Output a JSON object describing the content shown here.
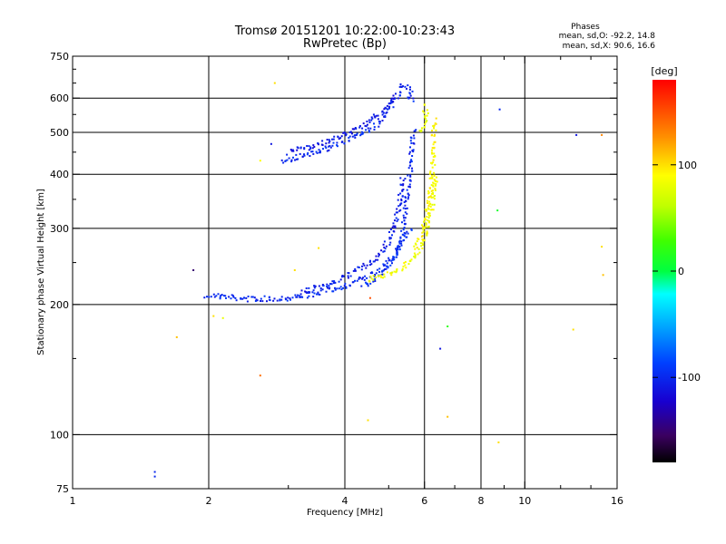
{
  "chart_data": {
    "type": "scatter",
    "title": "Tromsø 20151201 10:22:00-10:23:43",
    "subtitle": "RwPretec (Bp)",
    "xlabel": "Frequency [MHz]",
    "ylabel": "Stationary phase Virtual Height [km]",
    "x_scale": "log",
    "y_scale": "log",
    "xlim": [
      1,
      16
    ],
    "ylim": [
      75,
      750
    ],
    "x_ticks": [
      {
        "value": 1,
        "label": "1"
      },
      {
        "value": 2,
        "label": "2"
      },
      {
        "value": 4,
        "label": "4"
      },
      {
        "value": 6,
        "label": "6"
      },
      {
        "value": 8,
        "label": "8"
      },
      {
        "value": 10,
        "label": "10"
      },
      {
        "value": 16,
        "label": "16"
      }
    ],
    "y_ticks": [
      {
        "value": 75,
        "label": "75"
      },
      {
        "value": 100,
        "label": "100"
      },
      {
        "value": 200,
        "label": "200"
      },
      {
        "value": 300,
        "label": "300"
      },
      {
        "value": 400,
        "label": "400"
      },
      {
        "value": 500,
        "label": "500"
      },
      {
        "value": 600,
        "label": "600"
      },
      {
        "value": 750,
        "label": "750"
      }
    ],
    "grid": true,
    "phase_stats": {
      "heading": "Phases",
      "line_o": "mean, sd,O: -92.2, 14.8",
      "line_x": "mean, sd,X:  90.6, 16.6"
    },
    "colorbar": {
      "label": "[deg]",
      "range": [
        -180,
        180
      ],
      "ticks": [
        {
          "value": 100,
          "label": "100"
        },
        {
          "value": 0,
          "label": "0"
        },
        {
          "value": -100,
          "label": "-100"
        }
      ]
    },
    "traces": [
      {
        "phase": -100,
        "points": [
          [
            1.98,
            210
          ],
          [
            2.1,
            209
          ],
          [
            2.3,
            207
          ],
          [
            2.5,
            206
          ],
          [
            2.7,
            206
          ],
          [
            3.0,
            207
          ],
          [
            3.3,
            210
          ],
          [
            3.6,
            214
          ],
          [
            3.9,
            219
          ],
          [
            4.2,
            225
          ],
          [
            4.5,
            232
          ],
          [
            4.8,
            241
          ],
          [
            5.0,
            250
          ],
          [
            5.2,
            262
          ],
          [
            5.3,
            275
          ],
          [
            5.35,
            290
          ],
          [
            5.4,
            310
          ],
          [
            5.45,
            335
          ],
          [
            5.5,
            360
          ],
          [
            5.55,
            390
          ],
          [
            5.6,
            420
          ],
          [
            5.62,
            450
          ],
          [
            5.65,
            480
          ],
          [
            5.68,
            510
          ]
        ]
      },
      {
        "phase": -105,
        "points": [
          [
            3.2,
            213
          ],
          [
            3.5,
            219
          ],
          [
            3.8,
            226
          ],
          [
            4.1,
            234
          ],
          [
            4.4,
            244
          ],
          [
            4.7,
            256
          ],
          [
            4.9,
            270
          ],
          [
            5.05,
            286
          ],
          [
            5.15,
            305
          ],
          [
            5.25,
            330
          ],
          [
            5.32,
            360
          ],
          [
            5.38,
            395
          ]
        ]
      },
      {
        "phase": -95,
        "points": [
          [
            4.4,
            220
          ],
          [
            4.6,
            227
          ],
          [
            4.8,
            236
          ],
          [
            5.0,
            246
          ],
          [
            5.15,
            258
          ],
          [
            5.3,
            272
          ],
          [
            5.45,
            288
          ],
          [
            5.6,
            300
          ]
        ]
      },
      {
        "phase": -100,
        "points": [
          [
            2.9,
            430
          ],
          [
            3.2,
            440
          ],
          [
            3.5,
            452
          ],
          [
            3.8,
            466
          ],
          [
            4.1,
            482
          ],
          [
            4.4,
            500
          ],
          [
            4.7,
            520
          ],
          [
            4.9,
            545
          ],
          [
            5.05,
            572
          ],
          [
            5.2,
            600
          ],
          [
            5.3,
            630
          ],
          [
            5.4,
            650
          ]
        ]
      },
      {
        "phase": -110,
        "points": [
          [
            3.0,
            450
          ],
          [
            3.3,
            460
          ],
          [
            3.6,
            474
          ],
          [
            3.9,
            490
          ],
          [
            4.2,
            508
          ],
          [
            4.5,
            528
          ],
          [
            4.8,
            552
          ],
          [
            5.0,
            580
          ],
          [
            5.15,
            610
          ]
        ]
      },
      {
        "phase": -100,
        "points": [
          [
            5.45,
            640
          ],
          [
            5.6,
            630
          ],
          [
            5.55,
            600
          ],
          [
            5.7,
            590
          ]
        ]
      },
      {
        "phase": 85,
        "points": [
          [
            4.5,
            228
          ],
          [
            4.8,
            232
          ],
          [
            5.1,
            238
          ],
          [
            5.4,
            245
          ],
          [
            5.65,
            255
          ],
          [
            5.85,
            268
          ],
          [
            6.0,
            285
          ],
          [
            6.1,
            305
          ],
          [
            6.2,
            330
          ],
          [
            6.28,
            355
          ],
          [
            6.33,
            380
          ],
          [
            6.38,
            405
          ]
        ]
      },
      {
        "phase": 90,
        "points": [
          [
            5.7,
            270
          ],
          [
            5.9,
            290
          ],
          [
            6.05,
            315
          ],
          [
            6.15,
            345
          ],
          [
            6.22,
            380
          ],
          [
            6.26,
            420
          ],
          [
            6.28,
            470
          ],
          [
            6.3,
            510
          ],
          [
            6.33,
            540
          ]
        ]
      },
      {
        "phase": 80,
        "points": [
          [
            5.9,
            500
          ],
          [
            6.0,
            530
          ],
          [
            6.05,
            560
          ],
          [
            5.95,
            580
          ]
        ]
      }
    ],
    "scattered_points": [
      {
        "x": 1.52,
        "y": 82,
        "phase": -100
      },
      {
        "x": 1.52,
        "y": 80,
        "phase": -100
      },
      {
        "x": 1.85,
        "y": 240,
        "phase": -150
      },
      {
        "x": 2.05,
        "y": 188,
        "phase": 100
      },
      {
        "x": 2.15,
        "y": 186,
        "phase": 80
      },
      {
        "x": 2.6,
        "y": 137,
        "phase": 140
      },
      {
        "x": 2.8,
        "y": 650,
        "phase": 100
      },
      {
        "x": 2.75,
        "y": 470,
        "phase": -110
      },
      {
        "x": 1.7,
        "y": 168,
        "phase": 110
      },
      {
        "x": 2.6,
        "y": 430,
        "phase": 90
      },
      {
        "x": 4.5,
        "y": 108,
        "phase": 100
      },
      {
        "x": 4.55,
        "y": 207,
        "phase": 150
      },
      {
        "x": 6.5,
        "y": 158,
        "phase": -110
      },
      {
        "x": 6.75,
        "y": 178,
        "phase": 20
      },
      {
        "x": 6.75,
        "y": 110,
        "phase": 110
      },
      {
        "x": 8.7,
        "y": 330,
        "phase": 10
      },
      {
        "x": 8.8,
        "y": 565,
        "phase": -100
      },
      {
        "x": 8.75,
        "y": 96,
        "phase": 100
      },
      {
        "x": 13.0,
        "y": 493,
        "phase": -110
      },
      {
        "x": 14.8,
        "y": 493,
        "phase": 130
      },
      {
        "x": 14.8,
        "y": 272,
        "phase": 100
      },
      {
        "x": 14.9,
        "y": 234,
        "phase": 110
      },
      {
        "x": 12.8,
        "y": 175,
        "phase": 100
      },
      {
        "x": 3.5,
        "y": 270,
        "phase": 100
      },
      {
        "x": 3.1,
        "y": 240,
        "phase": 100
      }
    ]
  }
}
